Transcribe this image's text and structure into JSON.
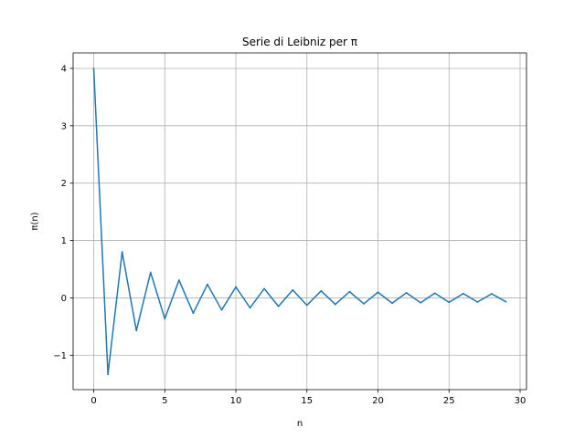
{
  "chart_data": {
    "type": "line",
    "title": "Serie di Leibniz per π",
    "xlabel": "n",
    "ylabel": "π(n)",
    "xlim": [
      -1.45,
      30.45
    ],
    "ylim": [
      -1.6,
      4.27
    ],
    "x_ticks": [
      0,
      5,
      10,
      15,
      20,
      25,
      30
    ],
    "x_tick_labels": [
      "0",
      "5",
      "10",
      "15",
      "20",
      "25",
      "30"
    ],
    "y_ticks": [
      -1,
      0,
      1,
      2,
      3,
      4
    ],
    "y_tick_labels": [
      "−1",
      "0",
      "1",
      "2",
      "3",
      "4"
    ],
    "grid": true,
    "series": [
      {
        "color": "#1f77b4",
        "x": [
          0,
          1,
          2,
          3,
          4,
          5,
          6,
          7,
          8,
          9,
          10,
          11,
          12,
          13,
          14,
          15,
          16,
          17,
          18,
          19,
          20,
          21,
          22,
          23,
          24,
          25,
          26,
          27,
          28,
          29
        ],
        "y": [
          4.0,
          -1.333,
          0.8,
          -0.571,
          0.444,
          -0.364,
          0.308,
          -0.267,
          0.235,
          -0.211,
          0.19,
          -0.174,
          0.16,
          -0.148,
          0.138,
          -0.129,
          0.121,
          -0.114,
          0.108,
          -0.103,
          0.098,
          -0.093,
          0.089,
          -0.085,
          0.082,
          -0.078,
          0.075,
          -0.073,
          0.07,
          -0.068
        ]
      }
    ]
  }
}
